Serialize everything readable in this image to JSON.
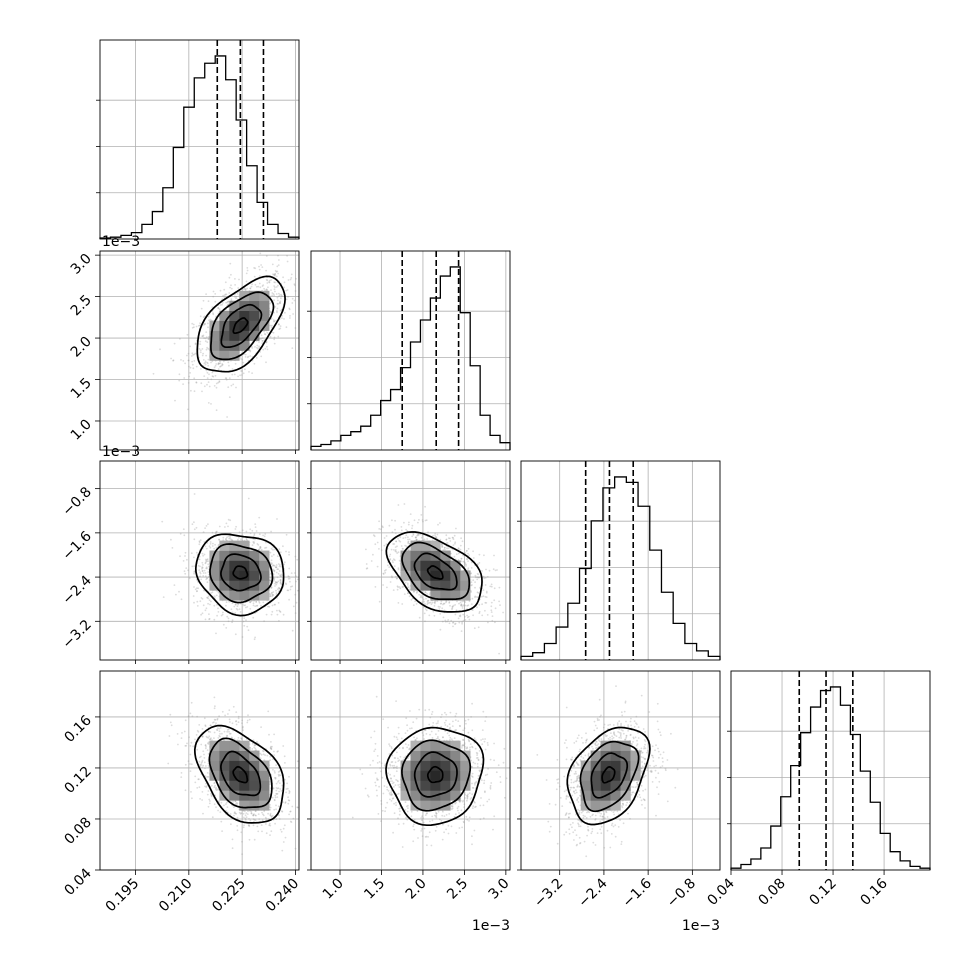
{
  "chart_data": {
    "type": "corner",
    "grid": true,
    "quantiles": [
      0.16,
      0.5,
      0.84
    ],
    "parameters": [
      {
        "range": [
          0.185,
          0.241
        ],
        "ticks": [
          0.195,
          0.21,
          0.225,
          0.24
        ],
        "tick_labels": [
          "0.195",
          "0.210",
          "0.225",
          "0.240"
        ],
        "offset_label": "",
        "mean": 0.2245,
        "sd": 0.0065,
        "median": 0.2245,
        "q16": 0.218,
        "q84": 0.231
      },
      {
        "range": [
          0.00065,
          0.00305
        ],
        "ticks": [
          0.001,
          0.0015,
          0.002,
          0.0025,
          0.003
        ],
        "tick_labels": [
          "1.0",
          "1.5",
          "2.0",
          "2.5",
          "3.0"
        ],
        "offset_label": "1e−3",
        "mean": 0.00215,
        "sd": 0.0003,
        "median": 0.00216,
        "q16": 0.00175,
        "q84": 0.00243
      },
      {
        "range": [
          -0.0039,
          -0.0003
        ],
        "ticks": [
          -0.0032,
          -0.0024,
          -0.0016,
          -0.0008
        ],
        "tick_labels": [
          "−3.2",
          "−2.4",
          "−1.6",
          "−0.8"
        ],
        "offset_label": "1e−3",
        "mean": -0.00232,
        "sd": 0.00038,
        "median": -0.0023,
        "q16": -0.00273,
        "q84": -0.00187
      },
      {
        "range": [
          0.04,
          0.196
        ],
        "ticks": [
          0.04,
          0.08,
          0.12,
          0.16
        ],
        "tick_labels": [
          "0.04",
          "0.08",
          "0.12",
          "0.16"
        ],
        "offset_label": "",
        "mean": 0.1145,
        "sd": 0.02,
        "median": 0.1145,
        "q16": 0.0935,
        "q84": 0.1355
      }
    ],
    "correlations": {
      "1-0": 0.55,
      "2-0": -0.1,
      "2-1": -0.45,
      "3-0": -0.42,
      "3-1": 0.05,
      "3-2": 0.35
    },
    "histograms": [
      [
        0.005,
        0.01,
        0.02,
        0.035,
        0.08,
        0.15,
        0.28,
        0.5,
        0.72,
        0.88,
        0.96,
        1.0,
        0.87,
        0.65,
        0.4,
        0.2,
        0.08,
        0.03,
        0.01
      ],
      [
        0.02,
        0.03,
        0.05,
        0.08,
        0.1,
        0.13,
        0.19,
        0.27,
        0.33,
        0.45,
        0.59,
        0.71,
        0.83,
        0.95,
        1.0,
        0.75,
        0.46,
        0.19,
        0.08,
        0.04
      ],
      [
        0.02,
        0.04,
        0.09,
        0.18,
        0.31,
        0.5,
        0.76,
        0.94,
        1.0,
        0.97,
        0.84,
        0.6,
        0.37,
        0.2,
        0.09,
        0.05,
        0.02
      ],
      [
        0.01,
        0.03,
        0.06,
        0.12,
        0.24,
        0.4,
        0.57,
        0.75,
        0.89,
        0.98,
        1.0,
        0.9,
        0.74,
        0.54,
        0.37,
        0.2,
        0.1,
        0.05,
        0.02,
        0.01
      ]
    ]
  }
}
